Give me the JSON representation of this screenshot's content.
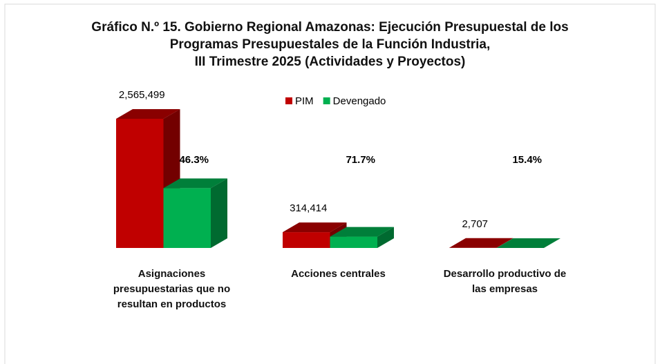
{
  "chart_data": {
    "type": "bar3d",
    "title": "Gráfico N.º 15. Gobierno Regional Amazonas: Ejecución Presupuestal de los\nProgramas Presupuestales de la Función Industria,\nIII Trimestre 2025 (Actividades y Proyectos)",
    "categories": [
      "Asignaciones presupuestarias que no resultan en productos",
      "Acciones centrales",
      "Desarrollo productivo de las empresas"
    ],
    "series": [
      {
        "name": "PIM",
        "color": "#c00000",
        "values": [
          2565499,
          314414,
          2707
        ],
        "value_labels": [
          "2,565,499",
          "314,414",
          "2,707"
        ]
      },
      {
        "name": "Devengado",
        "color": "#00b050",
        "values": [
          1187826,
          225435,
          417
        ]
      }
    ],
    "annotations": [
      "46.3%",
      "71.7%",
      "15.4%"
    ],
    "legend": "top"
  }
}
